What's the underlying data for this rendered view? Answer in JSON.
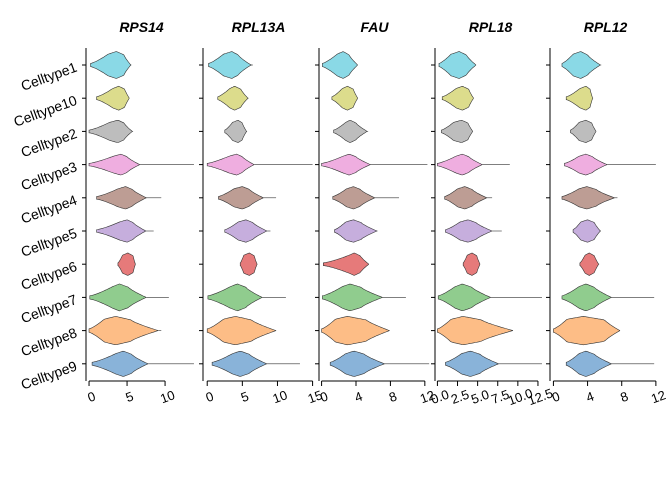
{
  "chart_data": {
    "type": "violin",
    "orientation": "horizontal",
    "categories": [
      "Celltype1",
      "Celltype10",
      "Celltype2",
      "Celltype3",
      "Celltype4",
      "Celltype5",
      "Celltype6",
      "Celltype7",
      "Celltype8",
      "Celltype9"
    ],
    "colors": [
      "#8ad9e6",
      "#dcdc8c",
      "#bdbdbd",
      "#efaee0",
      "#bd9d94",
      "#c6aedd",
      "#e67a7a",
      "#90cc8e",
      "#fdbd86",
      "#89b3d9"
    ],
    "panels": [
      {
        "title": "RPS14",
        "xlim": [
          -0.4,
          14.2
        ],
        "ticks": [
          0,
          5,
          10
        ],
        "tick_labels": [
          "0",
          "5",
          "10"
        ],
        "violins": [
          {
            "min": 0.2,
            "q1": 2.5,
            "median": 3.6,
            "q3": 4.6,
            "max": 5.5,
            "w": 0.9
          },
          {
            "min": 1.0,
            "q1": 3.1,
            "median": 3.9,
            "q3": 4.7,
            "max": 5.3,
            "w": 0.8
          },
          {
            "min": 0.0,
            "q1": 2.7,
            "median": 3.8,
            "q3": 4.6,
            "max": 5.7,
            "w": 0.75
          },
          {
            "min": 0.0,
            "q1": 3.2,
            "median": 4.2,
            "q3": 5.0,
            "max": 13.8,
            "w": 0.7
          },
          {
            "min": 1.0,
            "q1": 3.8,
            "median": 4.8,
            "q3": 5.7,
            "max": 9.5,
            "w": 0.75
          },
          {
            "min": 1.0,
            "q1": 4.0,
            "median": 5.0,
            "q3": 5.8,
            "max": 8.5,
            "w": 0.75
          },
          {
            "min": 3.8,
            "q1": 4.4,
            "median": 5.1,
            "q3": 5.8,
            "max": 6.1,
            "w": 0.75
          },
          {
            "min": 0.1,
            "q1": 3.1,
            "median": 4.0,
            "q3": 5.2,
            "max": 10.5,
            "w": 0.9
          },
          {
            "min": 0.0,
            "q1": 2.0,
            "median": 3.5,
            "q3": 5.5,
            "max": 9.5,
            "w": 0.95
          },
          {
            "min": 0.4,
            "q1": 3.5,
            "median": 4.5,
            "q3": 5.6,
            "max": 13.8,
            "w": 0.85
          }
        ]
      },
      {
        "title": "RPL13A",
        "xlim": [
          -0.6,
          15.2
        ],
        "ticks": [
          0,
          5,
          10,
          15
        ],
        "tick_labels": [
          "0",
          "5",
          "10",
          "15"
        ],
        "violins": [
          {
            "min": 0.2,
            "q1": 2.3,
            "median": 3.5,
            "q3": 4.4,
            "max": 6.5,
            "w": 0.9
          },
          {
            "min": 1.5,
            "q1": 3.2,
            "median": 3.9,
            "q3": 4.8,
            "max": 5.8,
            "w": 0.8
          },
          {
            "min": 2.5,
            "q1": 3.6,
            "median": 4.4,
            "q3": 5.0,
            "max": 5.6,
            "w": 0.75
          },
          {
            "min": 0.0,
            "q1": 3.1,
            "median": 4.2,
            "q3": 5.0,
            "max": 15.0,
            "w": 0.7
          },
          {
            "min": 1.6,
            "q1": 3.8,
            "median": 5.0,
            "q3": 6.0,
            "max": 9.8,
            "w": 0.75
          },
          {
            "min": 2.5,
            "q1": 4.4,
            "median": 5.5,
            "q3": 6.5,
            "max": 9.0,
            "w": 0.75
          },
          {
            "min": 4.7,
            "q1": 5.2,
            "median": 6.0,
            "q3": 6.7,
            "max": 7.1,
            "w": 0.75
          },
          {
            "min": 0.1,
            "q1": 3.3,
            "median": 4.3,
            "q3": 5.5,
            "max": 11.2,
            "w": 0.9
          },
          {
            "min": 0.0,
            "q1": 2.3,
            "median": 4.0,
            "q3": 6.3,
            "max": 9.8,
            "w": 0.95
          },
          {
            "min": 0.7,
            "q1": 3.6,
            "median": 4.7,
            "q3": 6.0,
            "max": 13.2,
            "w": 0.85
          }
        ]
      },
      {
        "title": "FAU",
        "xlim": [
          -0.3,
          12.6
        ],
        "ticks": [
          0,
          4,
          8,
          12
        ],
        "tick_labels": [
          "0",
          "4",
          "8",
          "12"
        ],
        "violins": [
          {
            "min": 0.1,
            "q1": 1.8,
            "median": 2.5,
            "q3": 3.2,
            "max": 4.2,
            "w": 0.9
          },
          {
            "min": 1.2,
            "q1": 2.4,
            "median": 3.0,
            "q3": 3.7,
            "max": 4.2,
            "w": 0.8
          },
          {
            "min": 1.4,
            "q1": 2.8,
            "median": 3.3,
            "q3": 4.0,
            "max": 5.3,
            "w": 0.75
          },
          {
            "min": 0.0,
            "q1": 2.5,
            "median": 3.2,
            "q3": 4.0,
            "max": 12.3,
            "w": 0.7
          },
          {
            "min": 1.3,
            "q1": 2.9,
            "median": 3.7,
            "q3": 4.5,
            "max": 9.0,
            "w": 0.75
          },
          {
            "min": 1.5,
            "q1": 2.8,
            "median": 3.7,
            "q3": 4.6,
            "max": 6.5,
            "w": 0.75
          },
          {
            "min": 0.2,
            "q1": 3.2,
            "median": 3.8,
            "q3": 4.5,
            "max": 5.5,
            "w": 0.75
          },
          {
            "min": 0.1,
            "q1": 2.4,
            "median": 3.3,
            "q3": 4.6,
            "max": 9.8,
            "w": 0.9
          },
          {
            "min": 0.0,
            "q1": 1.6,
            "median": 3.0,
            "q3": 5.2,
            "max": 7.9,
            "w": 0.95
          },
          {
            "min": 1.0,
            "q1": 2.8,
            "median": 3.8,
            "q3": 5.0,
            "max": 12.5,
            "w": 0.85
          }
        ]
      },
      {
        "title": "RPL18",
        "xlim": [
          -0.3,
          13.5
        ],
        "ticks": [
          0,
          2.5,
          5,
          7.5,
          10,
          12.5
        ],
        "tick_labels": [
          "0.0",
          "2.5",
          "5.0",
          "7.5",
          "10.0",
          "12.5"
        ],
        "violins": [
          {
            "min": 0.2,
            "q1": 1.7,
            "median": 2.7,
            "q3": 3.6,
            "max": 4.8,
            "w": 0.9
          },
          {
            "min": 0.6,
            "q1": 2.3,
            "median": 3.1,
            "q3": 3.9,
            "max": 4.5,
            "w": 0.8
          },
          {
            "min": 0.5,
            "q1": 2.0,
            "median": 3.0,
            "q3": 3.8,
            "max": 4.4,
            "w": 0.75
          },
          {
            "min": 0.0,
            "q1": 2.3,
            "median": 3.1,
            "q3": 3.9,
            "max": 9.0,
            "w": 0.7
          },
          {
            "min": 0.9,
            "q1": 2.5,
            "median": 3.4,
            "q3": 4.3,
            "max": 6.8,
            "w": 0.75
          },
          {
            "min": 1.0,
            "q1": 2.8,
            "median": 3.8,
            "q3": 4.8,
            "max": 8.0,
            "w": 0.75
          },
          {
            "min": 3.2,
            "q1": 3.7,
            "median": 4.3,
            "q3": 4.9,
            "max": 5.3,
            "w": 0.75
          },
          {
            "min": 0.1,
            "q1": 2.2,
            "median": 3.1,
            "q3": 4.3,
            "max": 13.0,
            "w": 0.9
          },
          {
            "min": 0.0,
            "q1": 1.7,
            "median": 3.2,
            "q3": 5.5,
            "max": 9.4,
            "w": 0.95
          },
          {
            "min": 1.0,
            "q1": 3.0,
            "median": 4.1,
            "q3": 5.3,
            "max": 13.0,
            "w": 0.85
          }
        ]
      },
      {
        "title": "RPL12",
        "xlim": [
          -0.4,
          12.6
        ],
        "ticks": [
          0,
          4,
          8,
          12
        ],
        "tick_labels": [
          "0",
          "4",
          "8",
          "12"
        ],
        "violins": [
          {
            "min": 1.0,
            "q1": 2.3,
            "median": 3.2,
            "q3": 4.0,
            "max": 5.5,
            "w": 0.9
          },
          {
            "min": 1.5,
            "q1": 3.1,
            "median": 3.8,
            "q3": 4.3,
            "max": 4.6,
            "w": 0.8
          },
          {
            "min": 2.0,
            "q1": 3.0,
            "median": 3.8,
            "q3": 4.5,
            "max": 5.0,
            "w": 0.75
          },
          {
            "min": 1.3,
            "q1": 3.0,
            "median": 3.8,
            "q3": 4.6,
            "max": 12.0,
            "w": 0.7
          },
          {
            "min": 1.0,
            "q1": 3.0,
            "median": 3.9,
            "q3": 5.0,
            "max": 7.5,
            "w": 0.75
          },
          {
            "min": 2.3,
            "q1": 3.2,
            "median": 4.0,
            "q3": 4.8,
            "max": 5.5,
            "w": 0.75
          },
          {
            "min": 3.1,
            "q1": 3.7,
            "median": 4.2,
            "q3": 4.8,
            "max": 5.3,
            "w": 0.75
          },
          {
            "min": 1.0,
            "q1": 3.0,
            "median": 3.8,
            "q3": 4.8,
            "max": 11.8,
            "w": 0.9
          },
          {
            "min": 0.0,
            "q1": 1.6,
            "median": 3.5,
            "q3": 6.0,
            "max": 7.8,
            "w": 0.95
          },
          {
            "min": 1.5,
            "q1": 3.0,
            "median": 3.8,
            "q3": 4.8,
            "max": 11.8,
            "w": 0.85
          }
        ]
      }
    ],
    "xlabel": "",
    "ylabel": "",
    "legend": "none",
    "grid": false
  }
}
